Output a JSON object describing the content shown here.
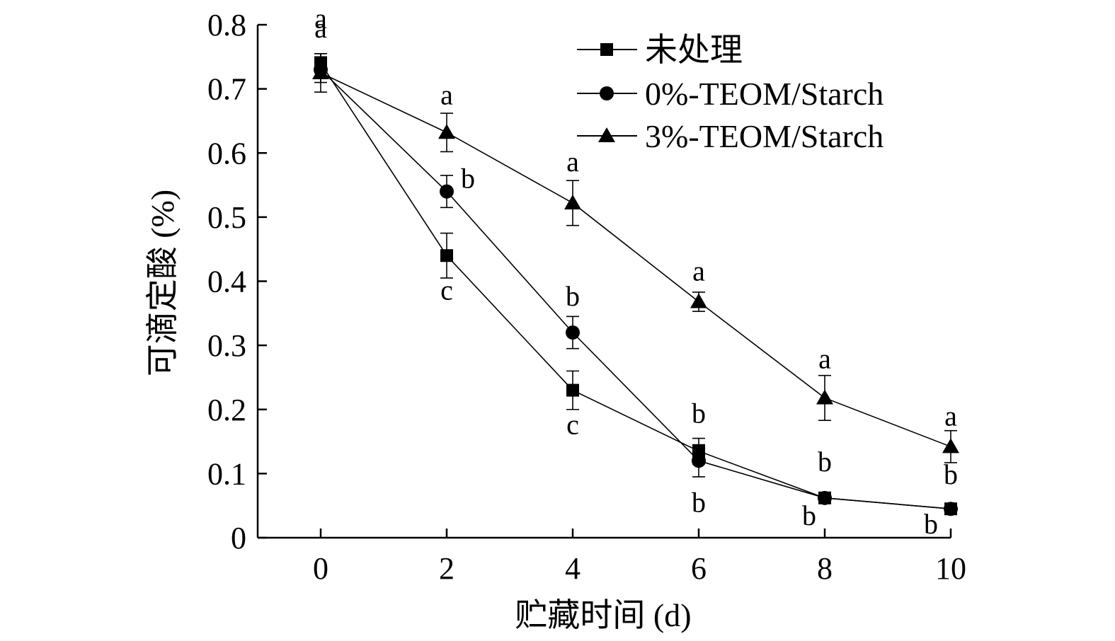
{
  "chart_data": {
    "type": "line",
    "title": "",
    "xlabel": "贮藏时间 (d)",
    "ylabel": "可滴定酸 (%)",
    "x": [
      0,
      2,
      4,
      6,
      8,
      10
    ],
    "xlim": [
      -1,
      10
    ],
    "ylim": [
      0,
      0.8
    ],
    "xticks": [
      "0",
      "2",
      "4",
      "6",
      "8",
      "10"
    ],
    "yticks": [
      "0",
      "0.1",
      "0.2",
      "0.3",
      "0.4",
      "0.5",
      "0.6",
      "0.7",
      "0.8"
    ],
    "grid": false,
    "legend_position": "top-right",
    "series": [
      {
        "name": "未处理",
        "marker": "square",
        "values": [
          0.74,
          0.44,
          0.23,
          0.135,
          0.062,
          0.045
        ],
        "errors": [
          0.015,
          0.035,
          0.03,
          0.02,
          0.005,
          0.005
        ],
        "labels": [
          "a",
          "c",
          "c",
          "b",
          "b",
          "b"
        ]
      },
      {
        "name": "0%-TEOM/Starch",
        "marker": "circle",
        "values": [
          0.73,
          0.54,
          0.32,
          0.12,
          0.062,
          0.045
        ],
        "errors": [
          0.02,
          0.025,
          0.025,
          0.025,
          0.005,
          0.005
        ],
        "labels": [
          "a",
          "b",
          "b",
          "b",
          "b",
          "b"
        ]
      },
      {
        "name": "3%-TEOM/Starch",
        "marker": "triangle",
        "values": [
          0.725,
          0.632,
          0.522,
          0.368,
          0.218,
          0.142
        ],
        "errors": [
          0.03,
          0.03,
          0.035,
          0.015,
          0.035,
          0.025
        ],
        "labels": [
          "a",
          "a",
          "a",
          "a",
          "a",
          "a"
        ]
      }
    ]
  }
}
